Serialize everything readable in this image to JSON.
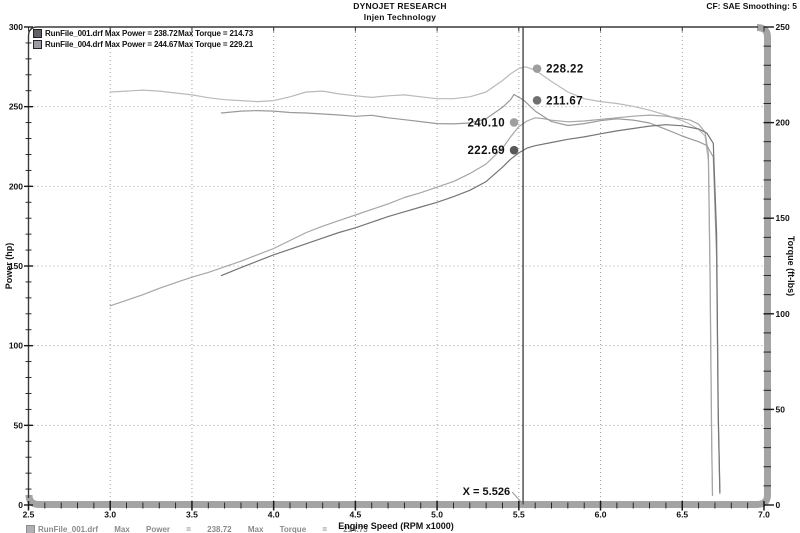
{
  "header": {
    "title": "DYNOJET RESEARCH",
    "subtitle": "Injen Technology",
    "top_right": "CF: SAE  Smoothing: 5"
  },
  "legend": {
    "rows": [
      {
        "swatch_color": "#61616b",
        "label_left": "RunFile_001.drf Max Power = 238.72",
        "label_right": "Max Torque = 214.73"
      },
      {
        "swatch_color": "#9b9ba4",
        "label_left": "RunFile_004.drf Max Power = 244.67",
        "label_right": "Max Torque = 229.21"
      }
    ]
  },
  "footer_partial": {
    "swatch_color": "#61616b",
    "text": "RunFile_001.drf Max Power = 238.72 Max Torque = 214.73"
  },
  "chart_data": {
    "type": "line",
    "title": "DYNOJET RESEARCH",
    "subtitle": "Injen Technology",
    "xlabel": "Engine Speed (RPM x1000)",
    "ylabel_left": "Power (hp)",
    "ylabel_right": "Torque (ft-lbs)",
    "x_range": [
      2.5,
      7.0
    ],
    "x_major_step": 0.5,
    "x_minor_step": 0.1,
    "y_left_range": [
      0,
      300
    ],
    "y_left_major_step": 50,
    "y_left_minor_step": 10,
    "y_right_range": [
      0,
      250
    ],
    "y_right_major_step": 50,
    "y_right_minor_step": 10,
    "grid": "dotted, vertical at each 0.5 RPM and horizontal at each 50 hp",
    "legend_position": "top-left",
    "maxima": [
      {
        "file": "RunFile_001.drf",
        "max_power_hp": 238.72,
        "max_torque_ftlbs": 214.73
      },
      {
        "file": "RunFile_004.drf",
        "max_power_hp": 244.67,
        "max_torque_ftlbs": 229.21
      }
    ],
    "cursor": {
      "x": 5.526,
      "label_prefix": "X = ",
      "readouts": [
        {
          "file": "RunFile_004.drf",
          "measure": "Torque",
          "value": 228.22,
          "axis": "right",
          "side": "right",
          "color": "#9e9e9e"
        },
        {
          "file": "RunFile_001.drf",
          "measure": "Torque",
          "value": 211.67,
          "axis": "right",
          "side": "right",
          "color": "#707070"
        },
        {
          "file": "RunFile_004.drf",
          "measure": "Power",
          "value": 240.1,
          "axis": "left",
          "side": "left",
          "color": "#9e9e9e"
        },
        {
          "file": "RunFile_001.drf",
          "measure": "Power",
          "value": 222.69,
          "axis": "left",
          "side": "left",
          "color": "#585858"
        }
      ]
    },
    "series": [
      {
        "name": "RunFile_004.drf Torque",
        "axis": "right",
        "color": "#bababa",
        "points": [
          [
            3.0,
            216
          ],
          [
            3.1,
            216.5
          ],
          [
            3.2,
            217
          ],
          [
            3.3,
            216.5
          ],
          [
            3.4,
            215.5
          ],
          [
            3.5,
            214.5
          ],
          [
            3.6,
            213
          ],
          [
            3.7,
            212
          ],
          [
            3.8,
            211.5
          ],
          [
            3.9,
            211
          ],
          [
            4.0,
            211.5
          ],
          [
            4.1,
            213.5
          ],
          [
            4.2,
            216
          ],
          [
            4.3,
            216.5
          ],
          [
            4.4,
            215
          ],
          [
            4.5,
            214
          ],
          [
            4.6,
            213.2
          ],
          [
            4.7,
            214
          ],
          [
            4.8,
            214.5
          ],
          [
            4.9,
            213.5
          ],
          [
            5.0,
            212.5
          ],
          [
            5.1,
            212.5
          ],
          [
            5.2,
            213.5
          ],
          [
            5.3,
            216
          ],
          [
            5.4,
            222
          ],
          [
            5.45,
            225.5
          ],
          [
            5.5,
            228.3
          ],
          [
            5.54,
            229.2
          ],
          [
            5.6,
            227.5
          ],
          [
            5.7,
            221.5
          ],
          [
            5.8,
            216
          ],
          [
            5.9,
            212.5
          ],
          [
            6.0,
            211
          ],
          [
            6.1,
            210
          ],
          [
            6.2,
            208.5
          ],
          [
            6.3,
            206.5
          ],
          [
            6.4,
            204
          ],
          [
            6.5,
            201
          ],
          [
            6.55,
            199
          ],
          [
            6.6,
            196.5
          ],
          [
            6.64,
            193
          ],
          [
            6.66,
            180
          ],
          [
            6.67,
            120
          ],
          [
            6.68,
            30
          ],
          [
            6.685,
            5
          ]
        ]
      },
      {
        "name": "RunFile_004.drf Power",
        "axis": "left",
        "color": "#a6a6a6",
        "points": [
          [
            3.0,
            125
          ],
          [
            3.1,
            128.5
          ],
          [
            3.2,
            132
          ],
          [
            3.3,
            136
          ],
          [
            3.4,
            139.5
          ],
          [
            3.5,
            143
          ],
          [
            3.6,
            146
          ],
          [
            3.7,
            149.5
          ],
          [
            3.8,
            153
          ],
          [
            3.9,
            157
          ],
          [
            4.0,
            161
          ],
          [
            4.1,
            166
          ],
          [
            4.2,
            171
          ],
          [
            4.3,
            175
          ],
          [
            4.4,
            178.5
          ],
          [
            4.5,
            182
          ],
          [
            4.6,
            185.5
          ],
          [
            4.7,
            189
          ],
          [
            4.8,
            193
          ],
          [
            4.9,
            196
          ],
          [
            5.0,
            199.5
          ],
          [
            5.1,
            203
          ],
          [
            5.2,
            208
          ],
          [
            5.3,
            214
          ],
          [
            5.4,
            224
          ],
          [
            5.45,
            231
          ],
          [
            5.5,
            237.5
          ],
          [
            5.55,
            241
          ],
          [
            5.6,
            243
          ],
          [
            5.65,
            242.5
          ],
          [
            5.7,
            241.5
          ],
          [
            5.8,
            240.5
          ],
          [
            5.9,
            241
          ],
          [
            6.0,
            242
          ],
          [
            6.1,
            243
          ],
          [
            6.2,
            244
          ],
          [
            6.3,
            244.7
          ],
          [
            6.4,
            244
          ],
          [
            6.5,
            242.5
          ],
          [
            6.55,
            241.5
          ],
          [
            6.6,
            239
          ],
          [
            6.64,
            234
          ],
          [
            6.66,
            220
          ],
          [
            6.67,
            150
          ],
          [
            6.68,
            40
          ],
          [
            6.685,
            6
          ]
        ]
      },
      {
        "name": "RunFile_001.drf Torque",
        "axis": "right",
        "color": "#9a9a9a",
        "points": [
          [
            3.68,
            205
          ],
          [
            3.8,
            206
          ],
          [
            3.9,
            206.3
          ],
          [
            4.0,
            206
          ],
          [
            4.1,
            205.3
          ],
          [
            4.2,
            205
          ],
          [
            4.3,
            204.5
          ],
          [
            4.4,
            204
          ],
          [
            4.5,
            203.3
          ],
          [
            4.6,
            203.8
          ],
          [
            4.7,
            202.5
          ],
          [
            4.8,
            201.5
          ],
          [
            4.9,
            200.5
          ],
          [
            5.0,
            199.5
          ],
          [
            5.1,
            199.3
          ],
          [
            5.2,
            199.8
          ],
          [
            5.3,
            202
          ],
          [
            5.4,
            208
          ],
          [
            5.45,
            212
          ],
          [
            5.47,
            214.7
          ],
          [
            5.53,
            211.7
          ],
          [
            5.6,
            206
          ],
          [
            5.7,
            200.5
          ],
          [
            5.8,
            198.5
          ],
          [
            5.9,
            199.5
          ],
          [
            6.0,
            201
          ],
          [
            6.1,
            202
          ],
          [
            6.2,
            201.3
          ],
          [
            6.3,
            199.8
          ],
          [
            6.4,
            196.5
          ],
          [
            6.5,
            193
          ],
          [
            6.55,
            191.5
          ],
          [
            6.6,
            190
          ],
          [
            6.65,
            188
          ],
          [
            6.69,
            182
          ],
          [
            6.71,
            130
          ],
          [
            6.72,
            45
          ],
          [
            6.73,
            6
          ]
        ]
      },
      {
        "name": "RunFile_001.drf Power",
        "axis": "left",
        "color": "#757575",
        "points": [
          [
            3.68,
            144
          ],
          [
            3.8,
            149
          ],
          [
            3.9,
            153
          ],
          [
            4.0,
            157
          ],
          [
            4.1,
            160.5
          ],
          [
            4.2,
            164
          ],
          [
            4.3,
            167.5
          ],
          [
            4.4,
            171
          ],
          [
            4.5,
            174
          ],
          [
            4.6,
            177.5
          ],
          [
            4.7,
            181
          ],
          [
            4.8,
            184
          ],
          [
            4.9,
            187
          ],
          [
            5.0,
            190
          ],
          [
            5.1,
            193.5
          ],
          [
            5.2,
            197.5
          ],
          [
            5.3,
            203
          ],
          [
            5.4,
            212
          ],
          [
            5.45,
            217
          ],
          [
            5.5,
            221
          ],
          [
            5.55,
            224
          ],
          [
            5.6,
            225.5
          ],
          [
            5.7,
            227.5
          ],
          [
            5.8,
            229.5
          ],
          [
            5.9,
            231
          ],
          [
            6.0,
            233
          ],
          [
            6.1,
            234.8
          ],
          [
            6.2,
            236.3
          ],
          [
            6.3,
            237.8
          ],
          [
            6.4,
            238.7
          ],
          [
            6.5,
            238
          ],
          [
            6.6,
            236
          ],
          [
            6.65,
            233.5
          ],
          [
            6.69,
            227
          ],
          [
            6.71,
            170
          ],
          [
            6.72,
            60
          ],
          [
            6.73,
            8
          ]
        ]
      }
    ]
  }
}
